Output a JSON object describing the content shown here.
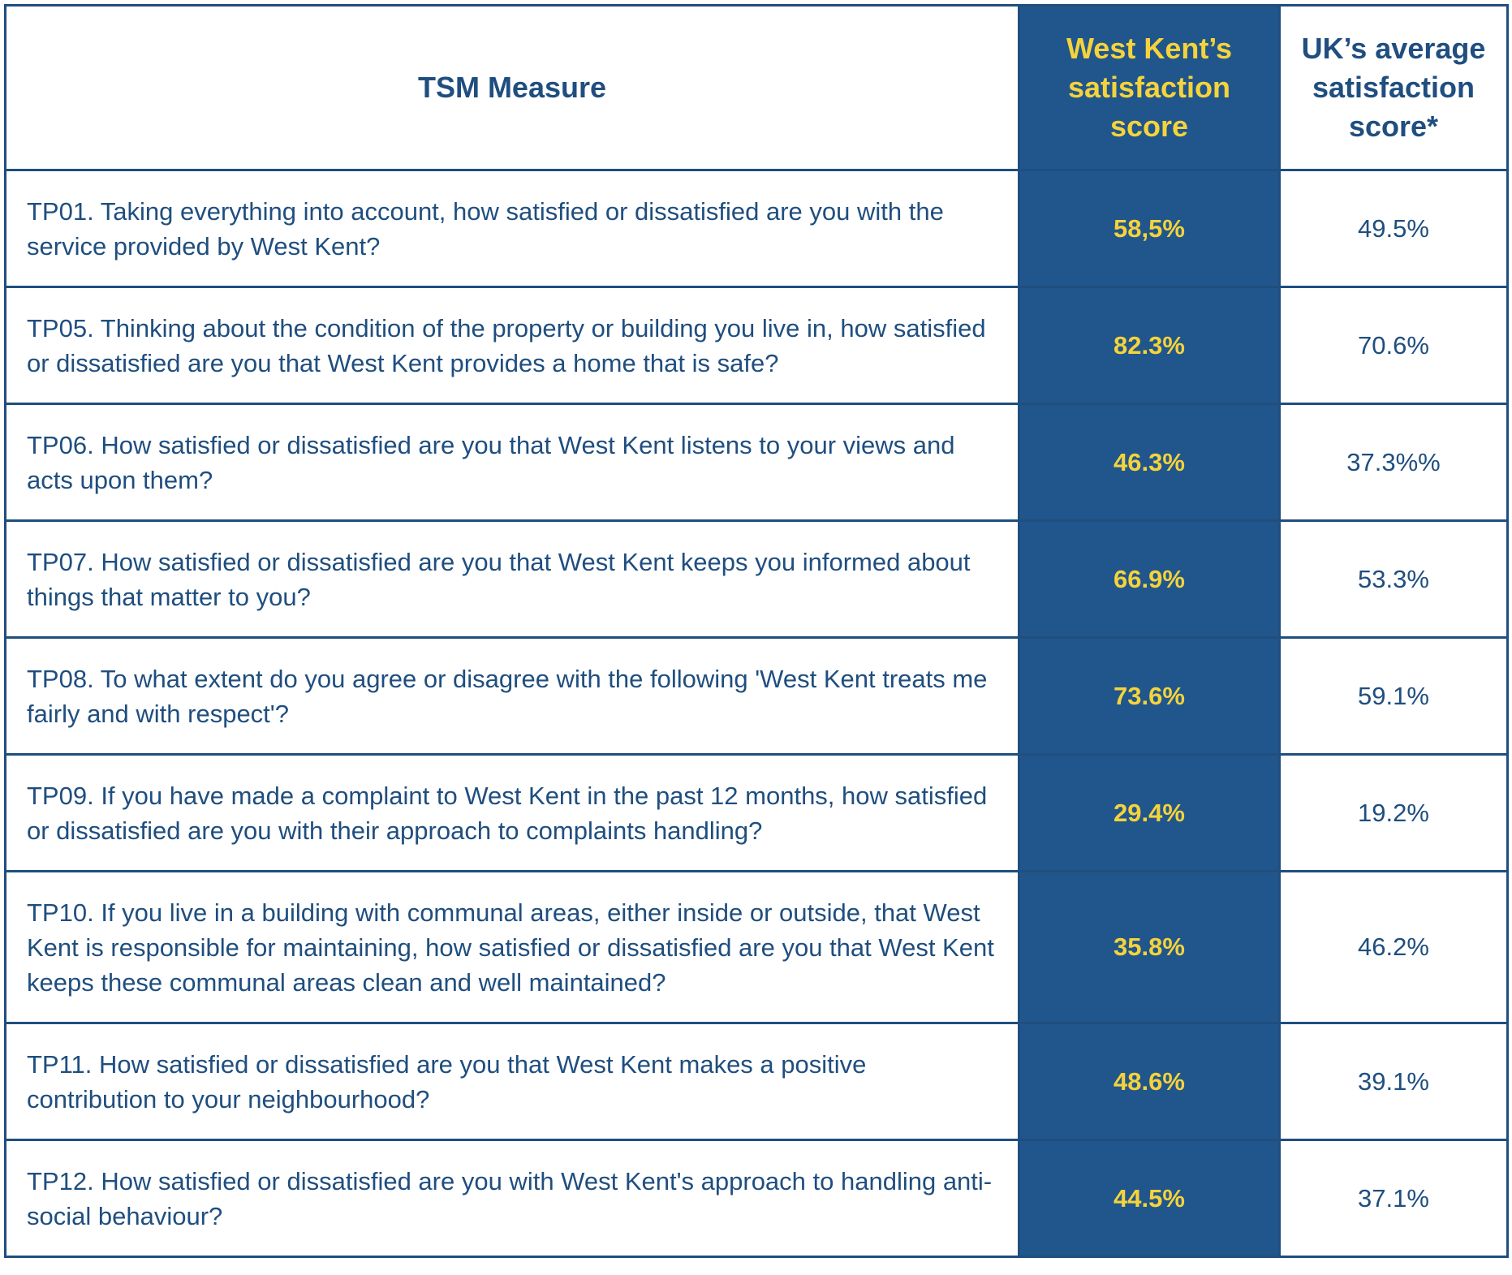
{
  "header": {
    "measure": "TSM Measure",
    "west_kent": "West Kent’s satisfaction score",
    "uk_average": "UK’s average satisfaction score*"
  },
  "rows": [
    {
      "measure": "TP01. Taking everything into account, how satisfied or dissatisfied are you with the service provided by West Kent?",
      "west_kent": "58,5%",
      "uk_average": "49.5%"
    },
    {
      "measure": "TP05. Thinking about the condition of the property or building you live in, how satisfied or dissatisfied are you that West Kent provides a home that is safe?",
      "west_kent": "82.3%",
      "uk_average": "70.6%"
    },
    {
      "measure": "TP06. How satisfied or dissatisfied are you that West Kent listens to your views and acts upon them?",
      "west_kent": "46.3%",
      "uk_average": "37.3%%"
    },
    {
      "measure": "TP07. How satisfied or dissatisfied are you that West Kent keeps you informed about things that matter to you?",
      "west_kent": "66.9%",
      "uk_average": "53.3%"
    },
    {
      "measure": "TP08. To what extent do you agree or disagree with the following 'West Kent treats me fairly and with respect'?",
      "west_kent": "73.6%",
      "uk_average": "59.1%"
    },
    {
      "measure": "TP09. If you have made a complaint to West Kent in the past 12 months, how satisfied or dissatisfied are you with their approach to complaints handling?",
      "west_kent": "29.4%",
      "uk_average": "19.2%"
    },
    {
      "measure": "TP10. If you live in a building with communal areas, either inside or outside, that West Kent is responsible for maintaining, how satisfied or dissatisfied are you that West Kent keeps these communal areas clean and well maintained?",
      "west_kent": "35.8%",
      "uk_average": "46.2%"
    },
    {
      "measure": "TP11. How satisfied or dissatisfied are you that West Kent makes a positive contribution to your neighbourhood?",
      "west_kent": "48.6%",
      "uk_average": "39.1%"
    },
    {
      "measure": "TP12. How satisfied or dissatisfied are you with West Kent's approach to handling anti-social behaviour?",
      "west_kent": "44.5%",
      "uk_average": "37.1%"
    }
  ],
  "colors": {
    "navy": "#1f4e7f",
    "column_fill": "#21568c",
    "highlight_text": "#f5d33b"
  }
}
